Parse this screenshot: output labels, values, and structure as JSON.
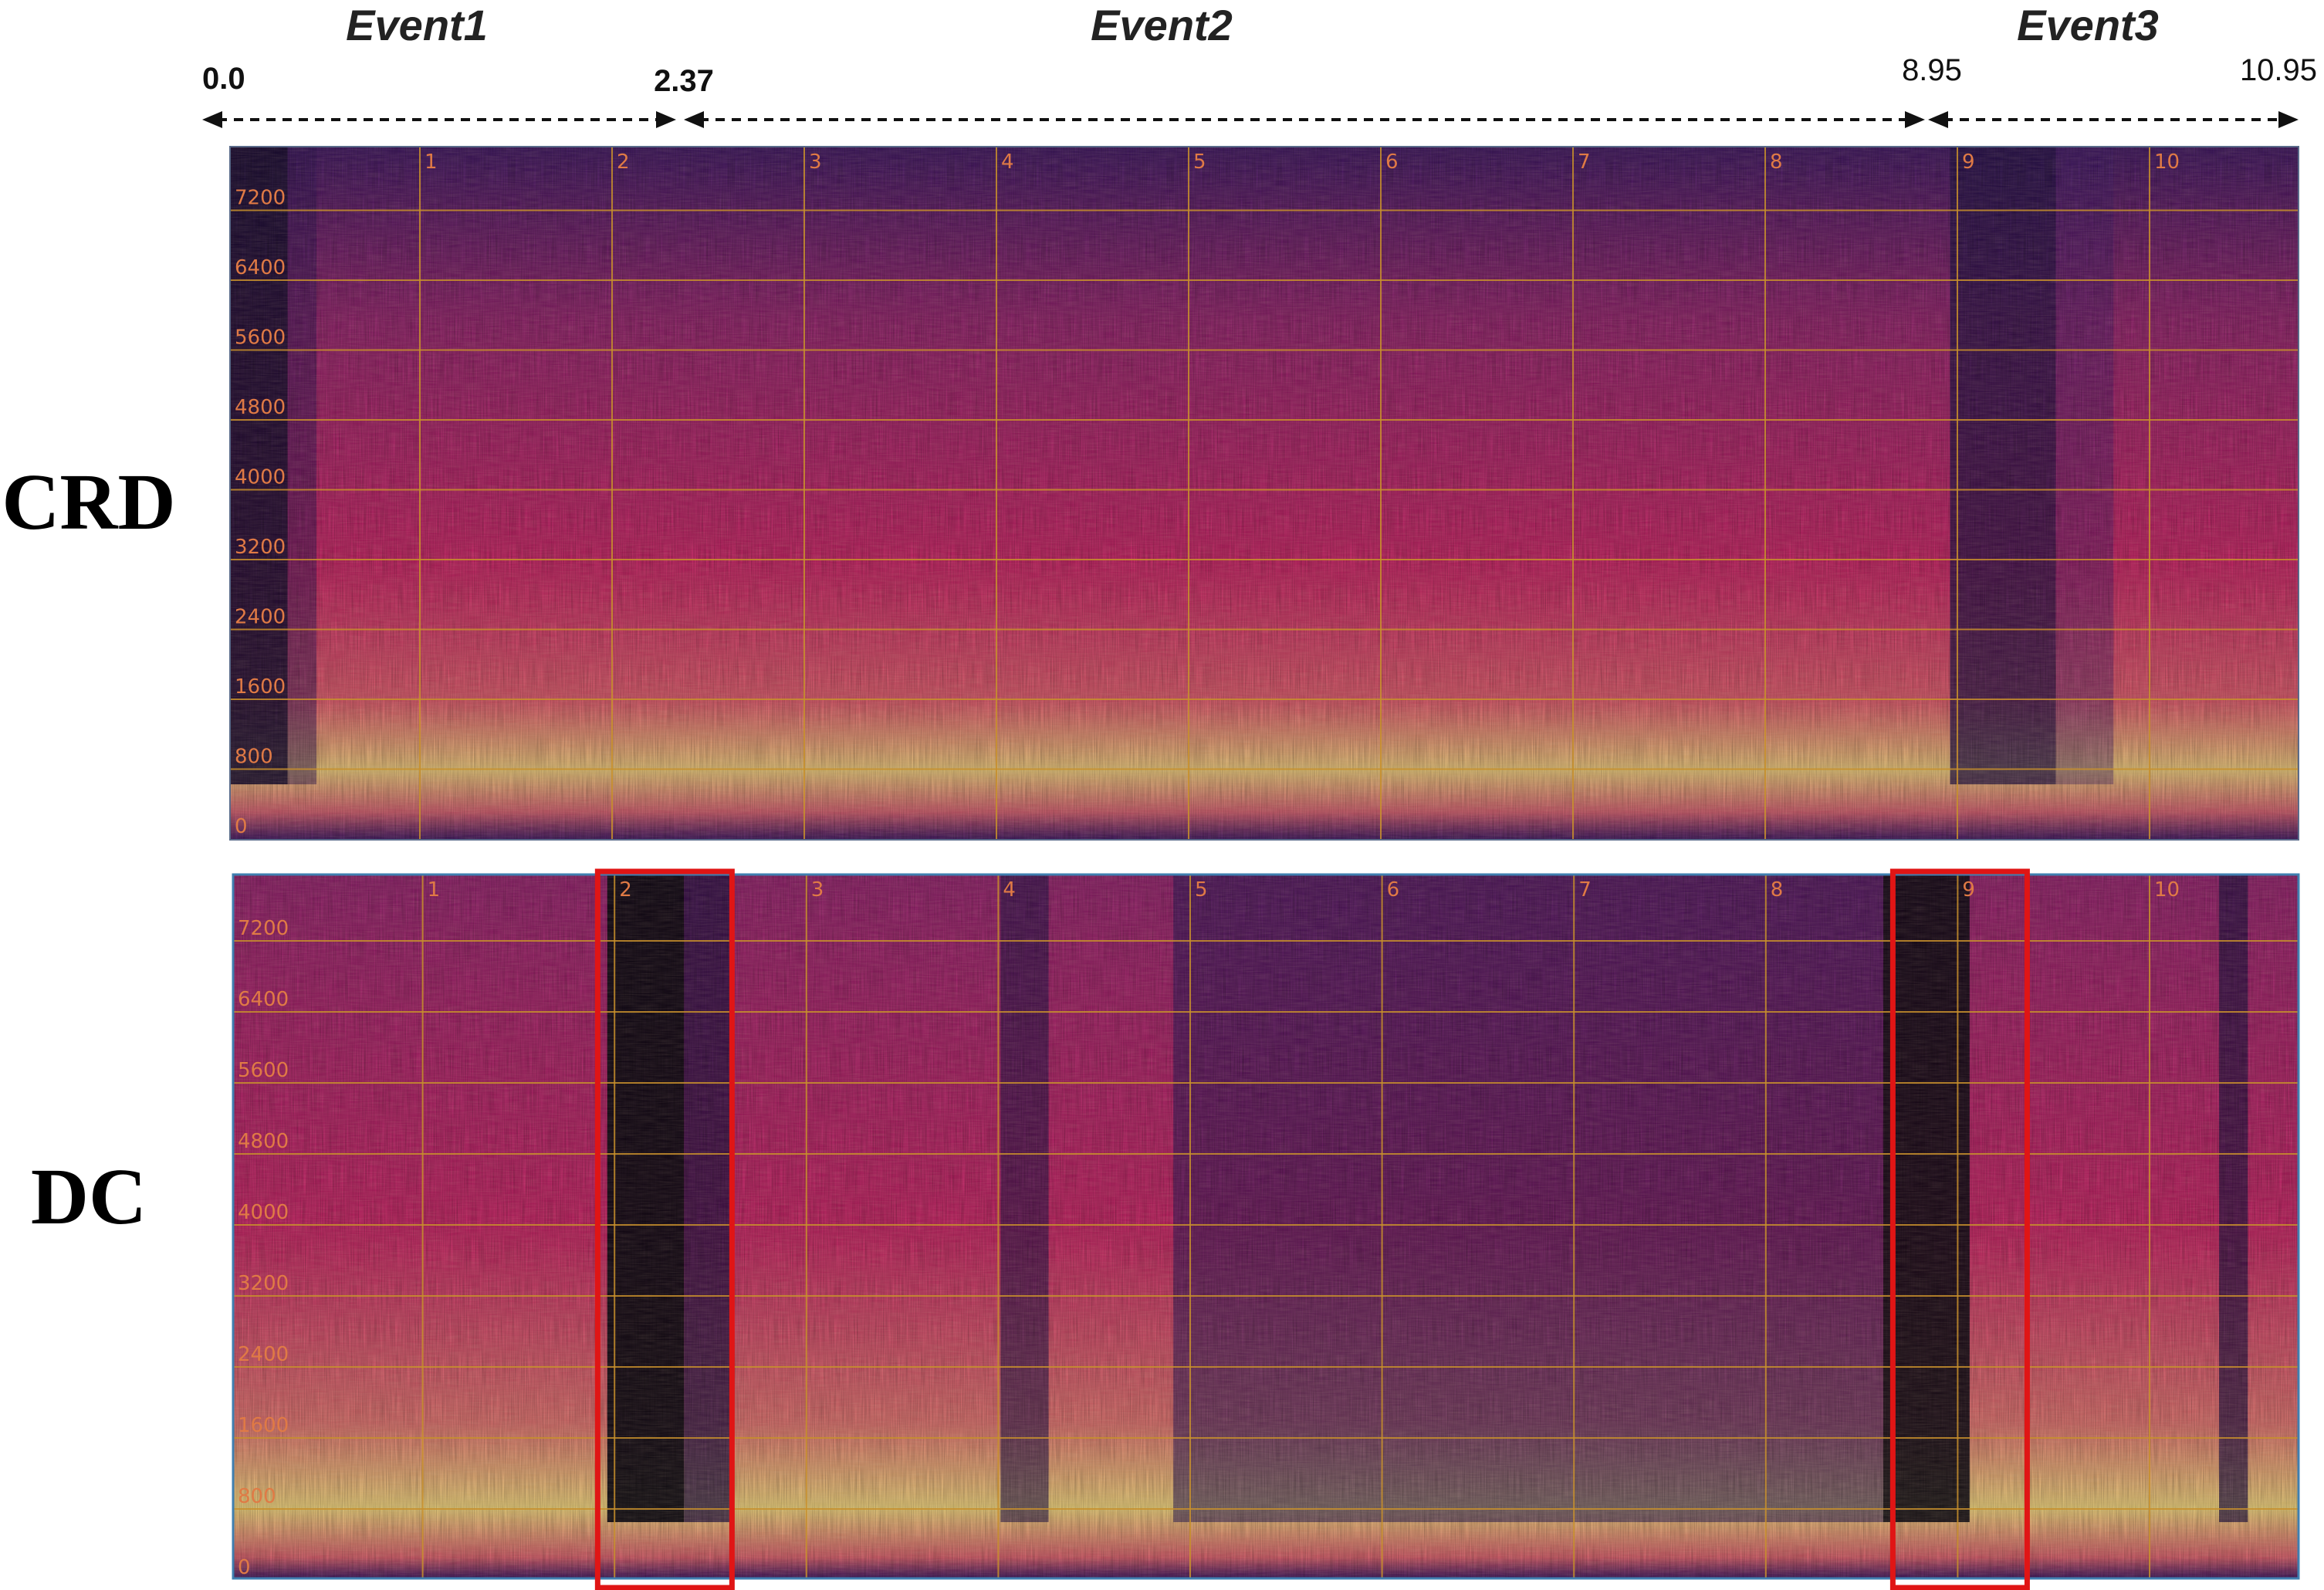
{
  "events": [
    {
      "label": "Event1"
    },
    {
      "label": "Event2"
    },
    {
      "label": "Event3"
    }
  ],
  "boundaries": {
    "start": "0.0",
    "b1": "2.37",
    "b2": "8.95",
    "end": "10.95"
  },
  "panels": [
    {
      "label": "CRD",
      "highlight": false
    },
    {
      "label": "DC",
      "highlight": true
    }
  ],
  "freq_ticks": [
    "0",
    "800",
    "1600",
    "2400",
    "3200",
    "4000",
    "4800",
    "5600",
    "6400",
    "7200"
  ],
  "time_ticks": [
    "1",
    "2",
    "3",
    "4",
    "5",
    "6",
    "7",
    "8",
    "9",
    "10"
  ],
  "highlight_regions_seconds": [
    [
      1.9,
      2.6
    ],
    [
      8.65,
      9.35
    ]
  ],
  "colors": {
    "spectrogram_low": "#1b0a3c",
    "spectrogram_mid": "#c2185b",
    "spectrogram_high": "#f3e27a",
    "highlight_box": "#e01515",
    "grid": "#c8902c"
  }
}
